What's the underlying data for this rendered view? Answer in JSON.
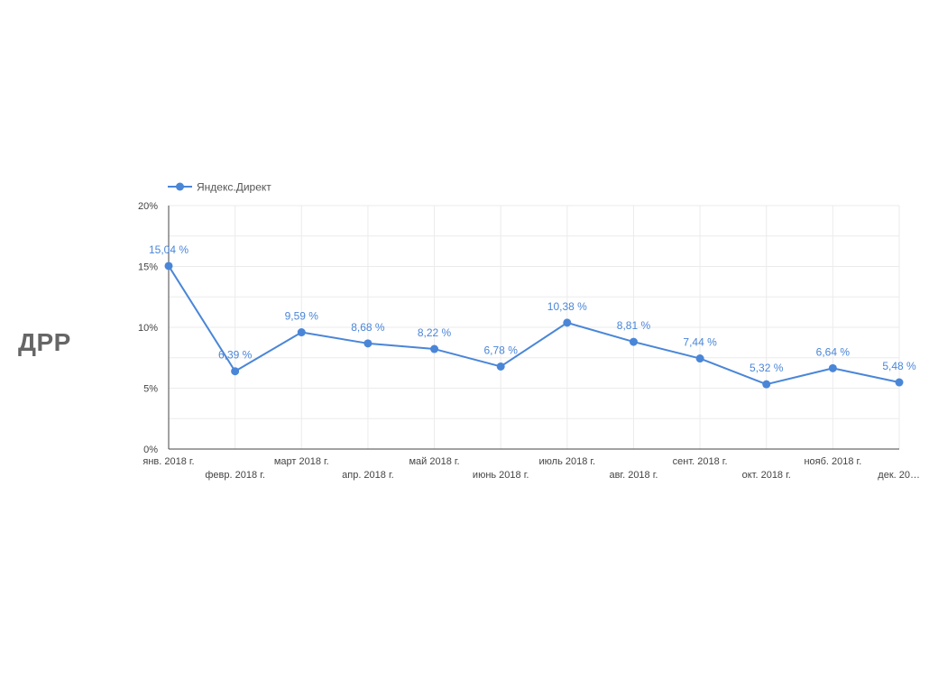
{
  "slide": {
    "title": "ДРР"
  },
  "chart_data": {
    "type": "line",
    "title": "",
    "xlabel": "",
    "ylabel": "",
    "legend_position": "top-left",
    "grid": true,
    "ylim": [
      0,
      20
    ],
    "y_ticks": [
      "0%",
      "5%",
      "10%",
      "15%",
      "20%"
    ],
    "categories": [
      "янв. 2018 г.",
      "февр. 2018 г.",
      "март 2018 г.",
      "апр. 2018 г.",
      "май 2018 г.",
      "июнь 2018 г.",
      "июль 2018 г.",
      "авг. 2018 г.",
      "сент. 2018 г.",
      "окт. 2018 г.",
      "нояб. 2018 г.",
      "дек. 20…"
    ],
    "series": [
      {
        "name": "Яндекс.Директ",
        "color": "#4a86d8",
        "values": [
          15.04,
          6.39,
          9.59,
          8.68,
          8.22,
          6.78,
          10.38,
          8.81,
          7.44,
          5.32,
          6.64,
          5.48
        ],
        "labels": [
          "15,04 %",
          "6,39 %",
          "9,59 %",
          "8,68 %",
          "8,22 %",
          "6,78 %",
          "10,38 %",
          "8,81 %",
          "7,44 %",
          "5,32 %",
          "6,64 %",
          "5,48 %"
        ]
      }
    ]
  }
}
